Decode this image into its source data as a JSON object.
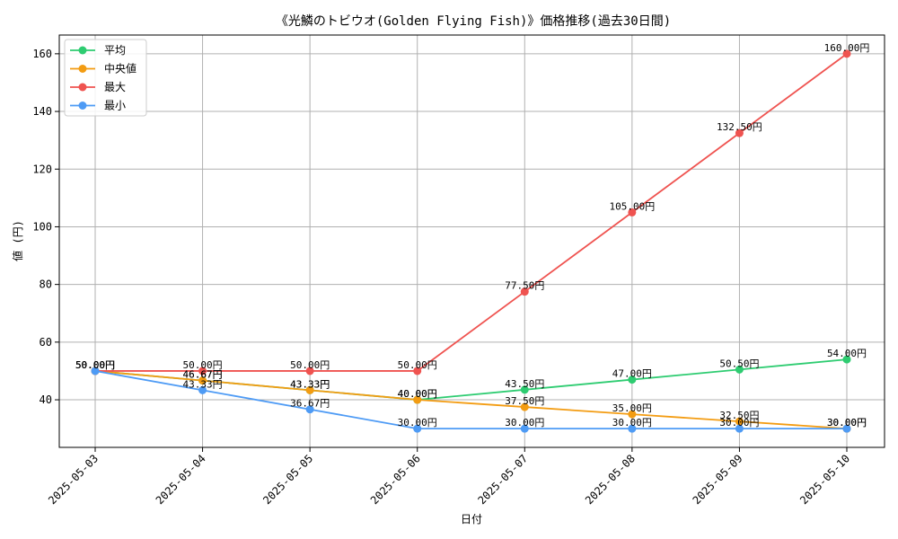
{
  "chart_data": {
    "type": "line",
    "title": "《光鱗のトビウオ(Golden Flying Fish)》価格推移(過去30日間)",
    "xlabel": "日付",
    "ylabel": "値 (円)",
    "categories": [
      "2025-05-03",
      "2025-05-04",
      "2025-05-05",
      "2025-05-06",
      "2025-05-07",
      "2025-05-08",
      "2025-05-09",
      "2025-05-10"
    ],
    "ylim": [
      23.5,
      166.5
    ],
    "yticks": [
      40,
      60,
      80,
      100,
      120,
      140,
      160
    ],
    "grid": true,
    "legend_position": "top-left",
    "label_suffix": "円",
    "series": [
      {
        "name": "平均",
        "color": "#2ecc71",
        "values": [
          50.0,
          46.67,
          43.33,
          40.0,
          43.5,
          47.0,
          50.5,
          54.0
        ]
      },
      {
        "name": "中央値",
        "color": "#f39c12",
        "values": [
          50.0,
          46.67,
          43.33,
          40.0,
          37.5,
          35.0,
          32.5,
          30.0
        ]
      },
      {
        "name": "最大",
        "color": "#ef5350",
        "values": [
          50.0,
          50.0,
          50.0,
          50.0,
          77.5,
          105.0,
          132.5,
          160.0
        ]
      },
      {
        "name": "最小",
        "color": "#4e9bf5",
        "values": [
          50.0,
          43.33,
          36.67,
          30.0,
          30.0,
          30.0,
          30.0,
          30.0
        ]
      }
    ]
  }
}
